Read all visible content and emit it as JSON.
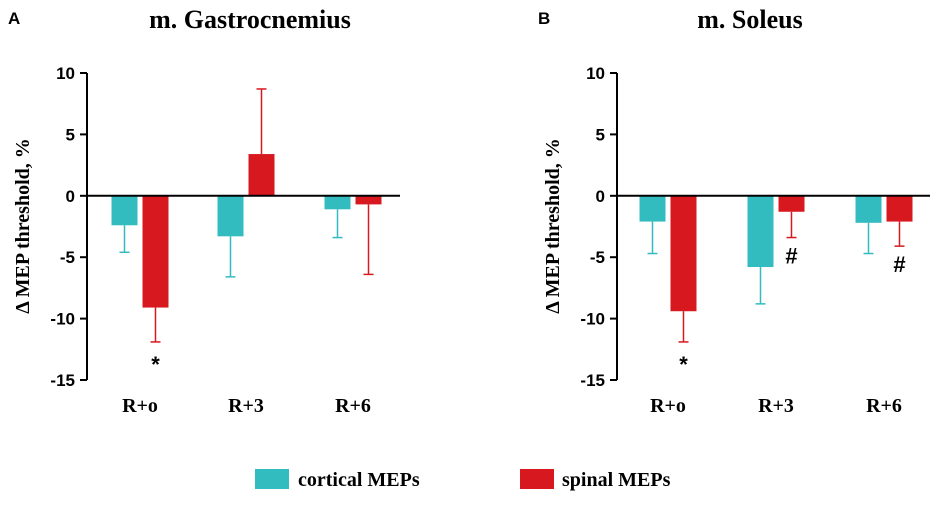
{
  "colors": {
    "cortical": "#33bcc0",
    "spinal": "#d7191f",
    "axis": "#000000"
  },
  "legend": {
    "cortical_label": "cortical MEPs",
    "spinal_label": "spinal MEPs"
  },
  "chart_data": [
    {
      "type": "bar",
      "panel_label": "A",
      "title": "m. Gastrocnemius",
      "ylabel": "Δ MEP threshold, %",
      "xlabel": "",
      "ylim": [
        -15,
        10
      ],
      "yticks": [
        10,
        5,
        0,
        -5,
        -10,
        -15
      ],
      "ytick_labels": [
        "10",
        "5",
        "0",
        "-5",
        "-10",
        "-15"
      ],
      "categories": [
        "R+o",
        "R+3",
        "R+6"
      ],
      "series": [
        {
          "name": "cortical MEPs",
          "values": [
            -2.4,
            -3.3,
            -1.1
          ],
          "errors": [
            2.2,
            3.3,
            2.3
          ]
        },
        {
          "name": "spinal MEPs",
          "values": [
            -9.1,
            3.4,
            -0.7
          ],
          "errors": [
            2.8,
            5.3,
            5.7
          ]
        }
      ],
      "annotations": [
        {
          "category": 0,
          "series": 1,
          "text": "*"
        }
      ]
    },
    {
      "type": "bar",
      "panel_label": "B",
      "title": "m. Soleus",
      "ylabel": "Δ MEP threshold, %",
      "xlabel": "",
      "ylim": [
        -15,
        10
      ],
      "yticks": [
        10,
        5,
        0,
        -5,
        -10,
        -15
      ],
      "ytick_labels": [
        "10",
        "5",
        "0",
        "-5",
        "-10",
        "-15"
      ],
      "categories": [
        "R+o",
        "R+3",
        "R+6"
      ],
      "series": [
        {
          "name": "cortical MEPs",
          "values": [
            -2.1,
            -5.8,
            -2.2
          ],
          "errors": [
            2.6,
            3.0,
            2.5
          ]
        },
        {
          "name": "spinal MEPs",
          "values": [
            -9.4,
            -1.3,
            -2.1
          ],
          "errors": [
            2.5,
            2.1,
            2.0
          ]
        }
      ],
      "annotations": [
        {
          "category": 0,
          "series": 1,
          "text": "*"
        },
        {
          "category": 1,
          "series": 1,
          "text": "#"
        },
        {
          "category": 2,
          "series": 1,
          "text": "#"
        }
      ]
    }
  ]
}
